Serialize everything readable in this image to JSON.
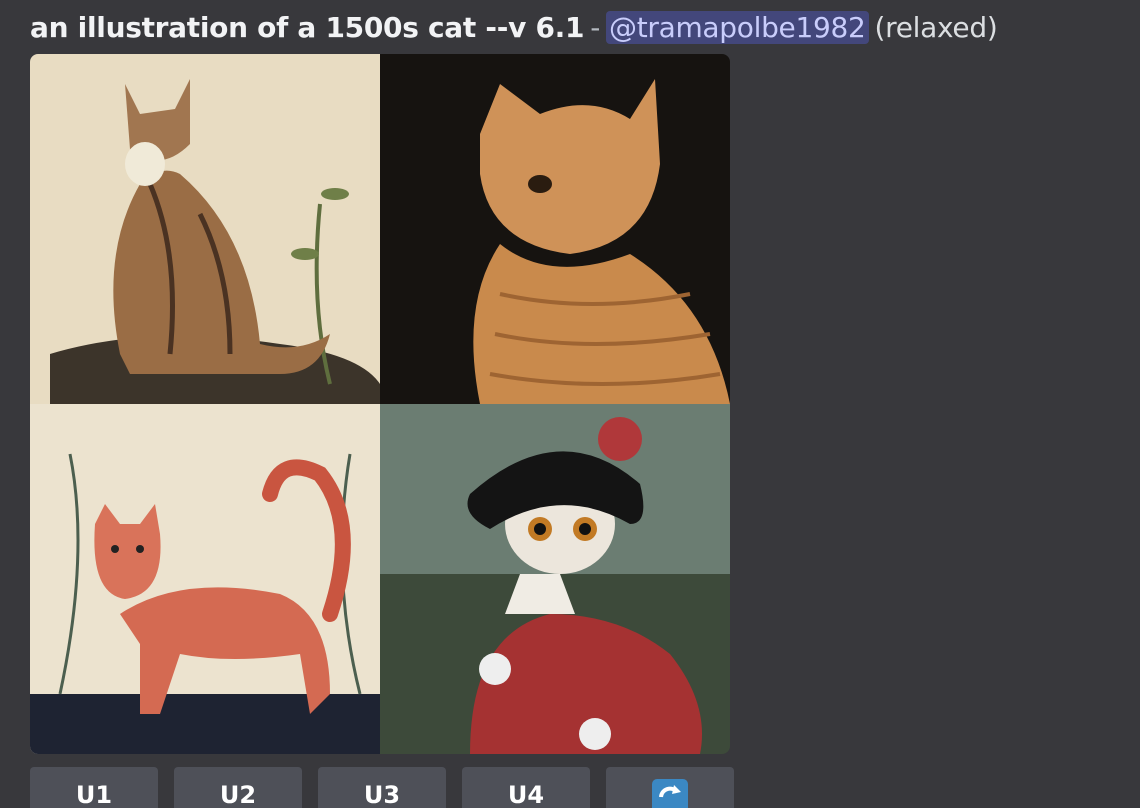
{
  "message": {
    "prompt": "an illustration of a 1500s cat --v 6.1",
    "separator": "-",
    "mention": "@tramapolbe1982",
    "status": "(relaxed)"
  },
  "buttons": [
    "U1",
    "U2",
    "U3",
    "U4"
  ]
}
